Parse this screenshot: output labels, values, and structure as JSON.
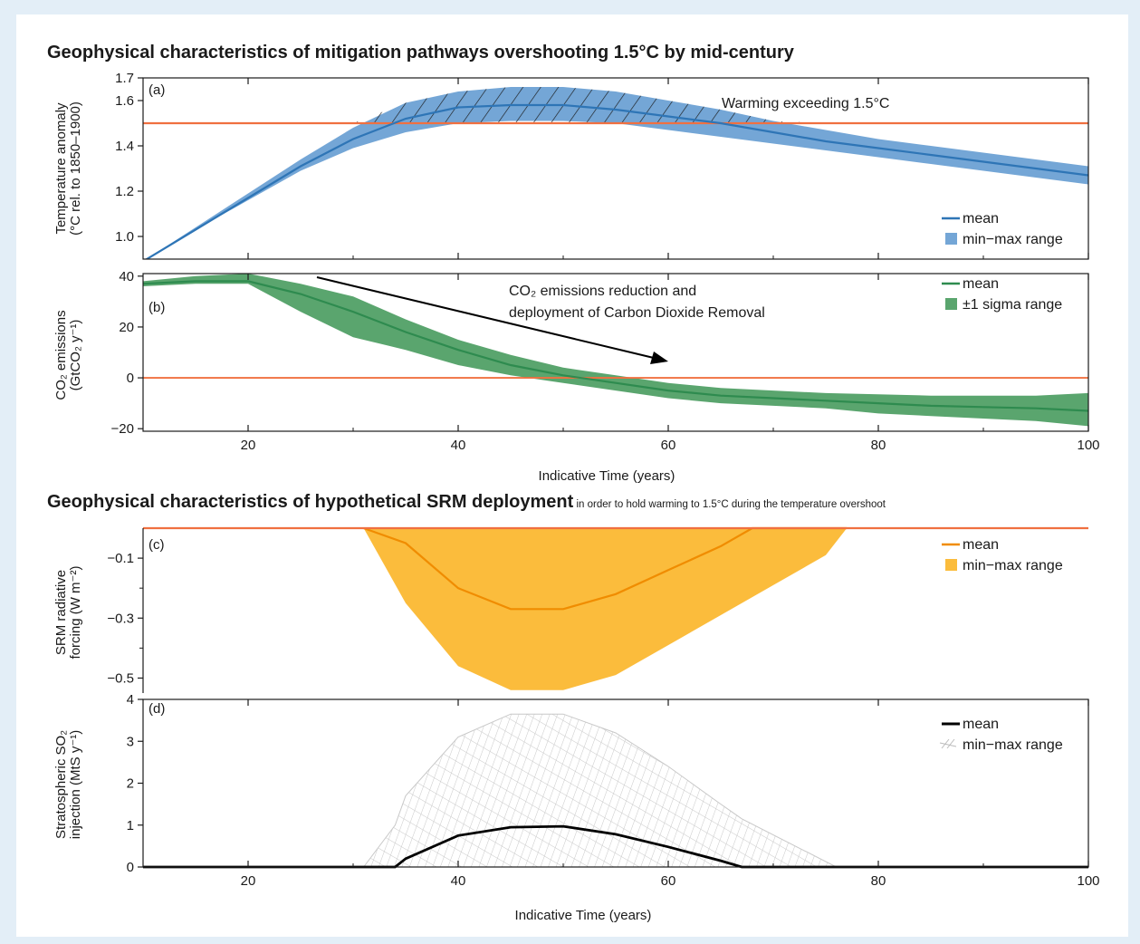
{
  "title_top": "Geophysical characteristics of mitigation pathways overshooting 1.5°C by mid-century",
  "title_bottom_bold": "Geophysical characteristics of hypothetical SRM deployment",
  "title_bottom_rest": " in order to hold warming to 1.5°C during the temperature overshoot",
  "colors": {
    "background": "#e3eef7",
    "temp": "#2e75b6",
    "temp_fill": "#74a6d6",
    "co2": "#2e8b4f",
    "co2_fill": "#5aa56e",
    "srm": "#f08c00",
    "srm_fill": "#fbbc3c",
    "so2": "#000000",
    "so2_hatch": "#c8c8c8",
    "reference": "#f07040"
  },
  "chart_data": [
    {
      "type": "area",
      "panel_label": "(a)",
      "ylabel": [
        "Temperature anomaly",
        "(°C rel. to 1850–1900)"
      ],
      "xlim": [
        10,
        100
      ],
      "ylim": [
        0.9,
        1.7
      ],
      "yticks": [
        1.0,
        1.2,
        1.4,
        1.6,
        1.7
      ],
      "ytick_labels": [
        "1.0",
        "1.2",
        "1.4",
        "1.6",
        "1.7"
      ],
      "reference_line": 1.5,
      "annotation": "Warming exceeding 1.5°C",
      "legend": [
        "mean",
        "min−max range"
      ],
      "x": [
        10,
        15,
        20,
        25,
        30,
        35,
        40,
        45,
        50,
        55,
        60,
        65,
        70,
        75,
        80,
        85,
        90,
        95,
        100
      ],
      "mean": [
        0.89,
        1.03,
        1.17,
        1.31,
        1.43,
        1.52,
        1.57,
        1.58,
        1.58,
        1.56,
        1.53,
        1.5,
        1.46,
        1.42,
        1.39,
        1.36,
        1.33,
        1.3,
        1.27
      ],
      "min": [
        0.89,
        1.03,
        1.16,
        1.29,
        1.39,
        1.46,
        1.5,
        1.51,
        1.51,
        1.5,
        1.47,
        1.44,
        1.41,
        1.38,
        1.35,
        1.32,
        1.29,
        1.26,
        1.23
      ],
      "max": [
        0.89,
        1.04,
        1.19,
        1.34,
        1.48,
        1.59,
        1.64,
        1.66,
        1.66,
        1.64,
        1.6,
        1.56,
        1.51,
        1.47,
        1.43,
        1.4,
        1.37,
        1.34,
        1.31
      ]
    },
    {
      "type": "area",
      "panel_label": "(b)",
      "ylabel": [
        "CO₂ emissions",
        "(GtCO₂ y⁻¹)"
      ],
      "xlim": [
        10,
        100
      ],
      "ylim": [
        -21,
        41
      ],
      "yticks": [
        -20,
        0,
        20,
        40
      ],
      "ytick_labels": [
        "−20",
        "0",
        "20",
        "40"
      ],
      "reference_line": 0,
      "annotation": [
        "CO₂ emissions reduction and",
        "deployment of Carbon Dioxide Removal"
      ],
      "legend": [
        "mean",
        "±1 sigma range"
      ],
      "x": [
        10,
        15,
        20,
        25,
        30,
        35,
        40,
        45,
        50,
        55,
        60,
        65,
        70,
        75,
        80,
        85,
        90,
        95,
        100
      ],
      "mean": [
        37,
        38,
        38,
        33,
        26,
        18,
        11,
        5,
        1,
        -2,
        -5,
        -7,
        -8,
        -9,
        -10,
        -11,
        -11.5,
        -12,
        -13
      ],
      "lower": [
        36,
        37,
        37,
        26,
        16,
        11,
        5,
        1,
        -2,
        -5,
        -8,
        -10,
        -11,
        -12,
        -14,
        -15,
        -16,
        -17,
        -19
      ],
      "upper": [
        38,
        40,
        41,
        37,
        32,
        23,
        15,
        9,
        4,
        1,
        -2,
        -4,
        -5,
        -6,
        -6.5,
        -7,
        -7,
        -7,
        -6
      ]
    },
    {
      "type": "area",
      "panel_label": "(c)",
      "ylabel": [
        "SRM radiative",
        "forcing  (W m⁻²)"
      ],
      "xlim": [
        10,
        100
      ],
      "ylim": [
        -0.55,
        0.0
      ],
      "yticks": [
        -0.1,
        -0.3,
        -0.5
      ],
      "ytick_labels": [
        "−0.1",
        "−0.3",
        "−0.5"
      ],
      "reference_line": 0,
      "legend": [
        "mean",
        "min−max range"
      ],
      "x": [
        31,
        35,
        40,
        45,
        50,
        55,
        60,
        65,
        68,
        70,
        75,
        77
      ],
      "mean": [
        0,
        -0.05,
        -0.2,
        -0.27,
        -0.27,
        -0.22,
        -0.14,
        -0.06,
        0,
        0,
        0,
        0
      ],
      "min": [
        0,
        -0.25,
        -0.46,
        -0.54,
        -0.54,
        -0.49,
        -0.39,
        -0.29,
        -0.23,
        -0.19,
        -0.09,
        0
      ],
      "max": [
        0,
        0,
        0,
        0,
        0,
        0,
        0,
        0,
        0,
        0,
        0,
        0
      ]
    },
    {
      "type": "area",
      "panel_label": "(d)",
      "ylabel": [
        "Stratospheric SO₂",
        "injection (MtS y⁻¹)"
      ],
      "xlabel": "Indicative Time (years)",
      "xlim": [
        10,
        100
      ],
      "ylim": [
        0,
        4
      ],
      "yticks": [
        0,
        1,
        2,
        3,
        4
      ],
      "ytick_labels": [
        "0",
        "1",
        "2",
        "3",
        "4"
      ],
      "legend": [
        "mean",
        "min−max range"
      ],
      "x": [
        10,
        31,
        34,
        35,
        40,
        45,
        50,
        55,
        60,
        65,
        67,
        76,
        100
      ],
      "mean": [
        0,
        0,
        0,
        0.2,
        0.75,
        0.95,
        0.97,
        0.78,
        0.48,
        0.15,
        0,
        0,
        0
      ],
      "min": [
        0,
        0,
        0,
        0,
        0,
        0,
        0,
        0,
        0,
        0,
        0,
        0,
        0
      ],
      "max": [
        0,
        0,
        1.0,
        1.7,
        3.1,
        3.65,
        3.65,
        3.2,
        2.4,
        1.5,
        1.15,
        0,
        0
      ]
    }
  ],
  "x_axis": {
    "ticks": [
      20,
      40,
      60,
      80,
      100
    ],
    "tick_labels": [
      "20",
      "40",
      "60",
      "80",
      "100"
    ],
    "xlabel": "Indicative Time (years)"
  }
}
